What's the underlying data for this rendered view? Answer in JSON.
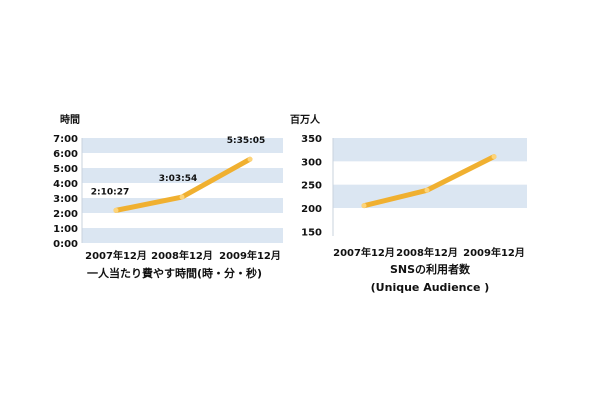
{
  "colors": {
    "band": "#dbe6f2",
    "line": "#f0b030",
    "text": "#111111"
  },
  "chart_data": [
    {
      "type": "line",
      "ylabel": "時間",
      "categories": [
        "2007年12月",
        "2008年12月",
        "2009年12月"
      ],
      "values": [
        2.1742,
        3.065,
        5.5847
      ],
      "data_labels": [
        "2:10:27",
        "3:03:54",
        "5:35:05"
      ],
      "ylim": [
        0,
        7
      ],
      "yticks": [
        0,
        1,
        2,
        3,
        4,
        5,
        6,
        7
      ],
      "ytick_labels": [
        "0:00",
        "1:00",
        "2:00",
        "3:00",
        "4:00",
        "5:00",
        "6:00",
        "7:00"
      ],
      "caption": [
        "一人当たり費やす時間(時・分・秒)"
      ],
      "grid": "alternating horizontal bands"
    },
    {
      "type": "line",
      "ylabel": "百万人",
      "categories": [
        "2007年12月",
        "2008年12月",
        "2009年12月"
      ],
      "values": [
        205,
        238,
        310
      ],
      "ylim": [
        140,
        350
      ],
      "yticks": [
        150,
        200,
        250,
        300,
        350
      ],
      "ytick_labels": [
        "150",
        "200",
        "250",
        "300",
        "350"
      ],
      "caption": [
        "SNSの利用者数",
        "(Unique Audience )"
      ],
      "grid": "alternating horizontal bands"
    }
  ]
}
